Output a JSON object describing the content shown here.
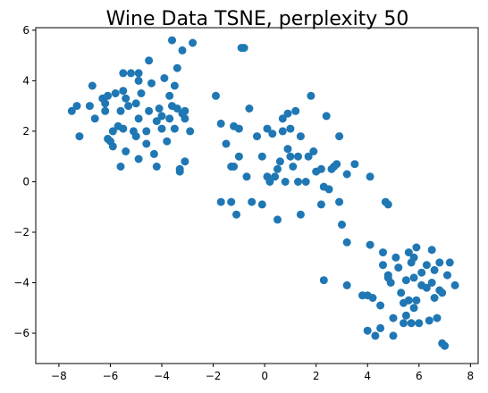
{
  "chart_data": {
    "type": "scatter",
    "title": "Wine Data TSNE, perplexity 50",
    "xlabel": "",
    "ylabel": "",
    "xlim": [
      -8.9,
      8.3
    ],
    "ylim": [
      -7.2,
      6.1
    ],
    "xticks": [
      -8,
      -6,
      -4,
      -2,
      0,
      2,
      4,
      6,
      8
    ],
    "yticks": [
      -6,
      -4,
      -2,
      0,
      2,
      4,
      6
    ],
    "xtick_labels": [
      "−8",
      "−6",
      "−4",
      "−2",
      "0",
      "2",
      "4",
      "6",
      "8"
    ],
    "ytick_labels": [
      "−6",
      "−4",
      "−2",
      "0",
      "2",
      "4",
      "6"
    ],
    "grid": false,
    "color": "#1f77b4",
    "points": [
      [
        -7.5,
        2.8
      ],
      [
        -7.3,
        3.0
      ],
      [
        -7.2,
        1.8
      ],
      [
        -6.8,
        3.0
      ],
      [
        -6.7,
        3.8
      ],
      [
        -6.6,
        2.5
      ],
      [
        -6.3,
        3.3
      ],
      [
        -6.2,
        2.8
      ],
      [
        -6.2,
        3.1
      ],
      [
        -6.1,
        3.4
      ],
      [
        -6.1,
        1.7
      ],
      [
        -6.0,
        1.6
      ],
      [
        -5.9,
        1.4
      ],
      [
        -5.9,
        2.0
      ],
      [
        -5.8,
        3.5
      ],
      [
        -5.7,
        2.2
      ],
      [
        -5.6,
        0.6
      ],
      [
        -5.6,
        2.8
      ],
      [
        -5.5,
        4.3
      ],
      [
        -5.5,
        3.6
      ],
      [
        -5.5,
        2.1
      ],
      [
        -5.4,
        3.3
      ],
      [
        -5.4,
        1.2
      ],
      [
        -5.3,
        3.0
      ],
      [
        -5.2,
        4.3
      ],
      [
        -5.1,
        2.0
      ],
      [
        -5.0,
        1.8
      ],
      [
        -5.0,
        3.1
      ],
      [
        -4.9,
        4.0
      ],
      [
        -4.9,
        4.3
      ],
      [
        -4.9,
        2.5
      ],
      [
        -4.9,
        0.9
      ],
      [
        -4.8,
        3.5
      ],
      [
        -4.6,
        2.0
      ],
      [
        -4.6,
        1.5
      ],
      [
        -4.5,
        4.8
      ],
      [
        -4.5,
        2.8
      ],
      [
        -4.4,
        3.9
      ],
      [
        -4.3,
        1.1
      ],
      [
        -4.2,
        2.4
      ],
      [
        -4.2,
        0.6
      ],
      [
        -4.1,
        2.9
      ],
      [
        -4.0,
        2.1
      ],
      [
        -4.0,
        2.6
      ],
      [
        -3.9,
        4.1
      ],
      [
        -3.8,
        1.6
      ],
      [
        -3.7,
        3.4
      ],
      [
        -3.7,
        2.5
      ],
      [
        -3.6,
        5.6
      ],
      [
        -3.6,
        3.0
      ],
      [
        -3.5,
        3.8
      ],
      [
        -3.5,
        2.1
      ],
      [
        -3.4,
        4.5
      ],
      [
        -3.4,
        2.9
      ],
      [
        -3.3,
        0.5
      ],
      [
        -3.3,
        0.4
      ],
      [
        -3.2,
        5.2
      ],
      [
        -3.2,
        2.7
      ],
      [
        -3.1,
        2.5
      ],
      [
        -3.1,
        0.8
      ],
      [
        -3.1,
        2.8
      ],
      [
        -2.9,
        2.0
      ],
      [
        -2.8,
        5.5
      ],
      [
        -1.9,
        3.4
      ],
      [
        -1.7,
        2.3
      ],
      [
        -1.7,
        -0.8
      ],
      [
        -1.5,
        1.5
      ],
      [
        -1.3,
        0.6
      ],
      [
        -1.3,
        -0.8
      ],
      [
        -1.2,
        2.2
      ],
      [
        -1.2,
        0.6
      ],
      [
        -1.1,
        -1.3
      ],
      [
        -1.0,
        2.1
      ],
      [
        -1.0,
        1.0
      ],
      [
        -0.9,
        5.3
      ],
      [
        -0.8,
        5.3
      ],
      [
        -0.7,
        0.2
      ],
      [
        -0.6,
        2.9
      ],
      [
        -0.5,
        -0.8
      ],
      [
        -0.3,
        1.8
      ],
      [
        -0.1,
        -0.9
      ],
      [
        -0.1,
        1.0
      ],
      [
        0.1,
        2.1
      ],
      [
        0.1,
        0.2
      ],
      [
        0.2,
        0.0
      ],
      [
        0.3,
        1.9
      ],
      [
        0.4,
        0.2
      ],
      [
        0.5,
        -1.5
      ],
      [
        0.5,
        0.5
      ],
      [
        0.6,
        0.8
      ],
      [
        0.7,
        2.5
      ],
      [
        0.7,
        2.0
      ],
      [
        0.8,
        0.0
      ],
      [
        0.9,
        2.7
      ],
      [
        0.9,
        1.3
      ],
      [
        1.0,
        2.1
      ],
      [
        1.0,
        1.0
      ],
      [
        1.1,
        0.6
      ],
      [
        1.2,
        2.8
      ],
      [
        1.3,
        1.0
      ],
      [
        1.3,
        0.0
      ],
      [
        1.4,
        1.8
      ],
      [
        1.4,
        -1.3
      ],
      [
        1.6,
        0.0
      ],
      [
        1.7,
        1.0
      ],
      [
        1.8,
        3.4
      ],
      [
        1.9,
        1.2
      ],
      [
        2.0,
        0.4
      ],
      [
        2.2,
        -0.9
      ],
      [
        2.2,
        0.5
      ],
      [
        2.3,
        -0.2
      ],
      [
        2.4,
        2.6
      ],
      [
        2.5,
        -0.3
      ],
      [
        2.6,
        0.5
      ],
      [
        2.7,
        0.6
      ],
      [
        2.8,
        0.7
      ],
      [
        2.9,
        -0.8
      ],
      [
        2.9,
        1.8
      ],
      [
        3.0,
        -1.7
      ],
      [
        3.2,
        0.3
      ],
      [
        3.2,
        -2.4
      ],
      [
        3.2,
        -4.1
      ],
      [
        3.5,
        0.7
      ],
      [
        2.3,
        -3.9
      ],
      [
        3.8,
        -4.5
      ],
      [
        4.0,
        -4.5
      ],
      [
        4.1,
        0.2
      ],
      [
        4.1,
        -2.5
      ],
      [
        4.2,
        -4.6
      ],
      [
        4.3,
        -6.1
      ],
      [
        4.5,
        -5.8
      ],
      [
        4.5,
        -4.9
      ],
      [
        4.6,
        -2.8
      ],
      [
        4.6,
        -3.3
      ],
      [
        4.7,
        -0.8
      ],
      [
        4.8,
        -0.9
      ],
      [
        4.8,
        -3.7
      ],
      [
        4.8,
        -3.8
      ],
      [
        4.9,
        -4.0
      ],
      [
        5.0,
        -5.4
      ],
      [
        5.0,
        -6.1
      ],
      [
        5.2,
        -3.4
      ],
      [
        5.3,
        -4.4
      ],
      [
        5.4,
        -4.8
      ],
      [
        5.4,
        -5.6
      ],
      [
        5.5,
        -3.9
      ],
      [
        5.5,
        -5.3
      ],
      [
        5.6,
        -4.7
      ],
      [
        5.6,
        -2.8
      ],
      [
        5.7,
        -3.2
      ],
      [
        5.7,
        -5.6
      ],
      [
        5.8,
        -3.0
      ],
      [
        5.8,
        -3.8
      ],
      [
        5.8,
        -5.0
      ],
      [
        5.9,
        -2.6
      ],
      [
        5.9,
        -4.7
      ],
      [
        6.0,
        -5.6
      ],
      [
        6.1,
        -4.1
      ],
      [
        6.1,
        -3.6
      ],
      [
        6.3,
        -3.3
      ],
      [
        6.3,
        -4.2
      ],
      [
        6.4,
        -5.5
      ],
      [
        6.5,
        -4.0
      ],
      [
        6.5,
        -2.7
      ],
      [
        6.6,
        -3.5
      ],
      [
        6.6,
        -4.6
      ],
      [
        6.7,
        -5.4
      ],
      [
        6.8,
        -3.2
      ],
      [
        6.8,
        -4.3
      ],
      [
        6.9,
        -6.4
      ],
      [
        6.9,
        -4.4
      ],
      [
        7.0,
        -6.5
      ],
      [
        7.1,
        -3.7
      ],
      [
        7.2,
        -3.2
      ],
      [
        7.4,
        -4.1
      ],
      [
        4.0,
        -5.9
      ],
      [
        5.1,
        -3.0
      ]
    ]
  }
}
